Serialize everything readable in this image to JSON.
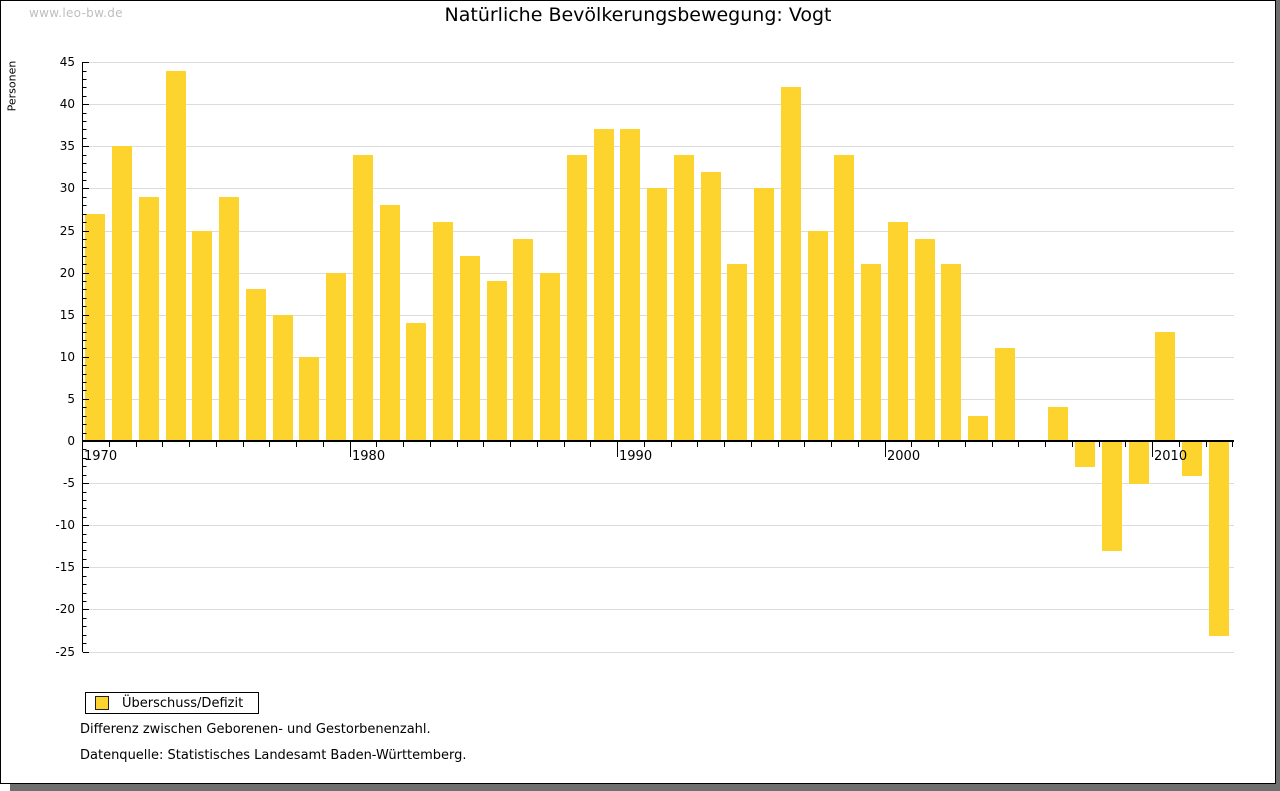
{
  "window": {
    "watermark": "www.leo-bw.de"
  },
  "title": "Natürliche Bevölkerungsbewegung: Vogt",
  "legend": {
    "label": "Überschuss/Defizit",
    "swatch_color": "#FDD32D",
    "swatch_border": "#222222"
  },
  "footnotes": {
    "line1": "Differenz zwischen Geborenen- und Gestorbenenzahl.",
    "line2": "Datenquelle: Statistisches Landesamt Baden-Württemberg."
  },
  "chart_data": {
    "type": "bar",
    "title": "Natürliche Bevölkerungsbewegung: Vogt",
    "xlabel": "",
    "ylabel": "Personen",
    "ylim": [
      -25,
      45
    ],
    "ytick_label_step": 5,
    "ytick_minor_step": 1,
    "xtick_labeled_years": [
      1970,
      1980,
      1990,
      2000,
      2010
    ],
    "grid": true,
    "grid_color": "#DCDCDC",
    "bar_color": "#FDD32D",
    "legend_position": "bottom-left-below-plot",
    "series": [
      {
        "name": "Überschuss/Defizit",
        "years": [
          1970,
          1971,
          1972,
          1973,
          1974,
          1975,
          1976,
          1977,
          1978,
          1979,
          1980,
          1981,
          1982,
          1983,
          1984,
          1985,
          1986,
          1987,
          1988,
          1989,
          1990,
          1991,
          1992,
          1993,
          1994,
          1995,
          1996,
          1997,
          1998,
          1999,
          2000,
          2001,
          2002,
          2003,
          2004,
          2005,
          2006,
          2007,
          2008,
          2009,
          2010,
          2011,
          2012
        ],
        "values": [
          27,
          35,
          29,
          44,
          25,
          29,
          18,
          15,
          10,
          20,
          34,
          28,
          14,
          26,
          22,
          19,
          24,
          20,
          34,
          37,
          37,
          30,
          34,
          32,
          21,
          30,
          42,
          25,
          34,
          21,
          26,
          24,
          21,
          3,
          11,
          0,
          4,
          -3,
          -13,
          -5,
          13,
          -4,
          -23
        ]
      }
    ]
  }
}
